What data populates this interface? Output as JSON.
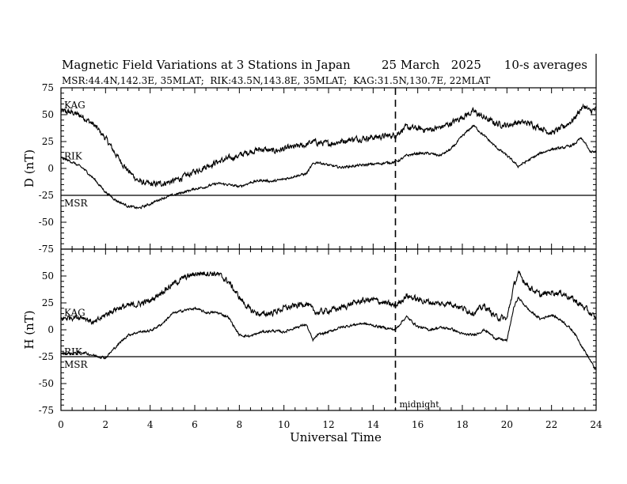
{
  "chart_data": {
    "type": "line",
    "title": "Magnetic Field Variations at 3 Stations in Japan",
    "date": "25 March   2025",
    "averaging": "10-s averages",
    "subtitle": "MSR:44.4N,142.3E, 35MLAT;  RIK:43.5N,143.8E, 35MLAT;  KAG:31.5N,130.7E, 22MLAT",
    "xlabel": "Universal Time",
    "xlim": [
      0,
      24
    ],
    "x_ticks": [
      "0",
      "2",
      "4",
      "6",
      "8",
      "10",
      "12",
      "14",
      "16",
      "18",
      "20",
      "22",
      "24"
    ],
    "midnight_marker": {
      "x": 15,
      "label": "midnight"
    },
    "panels": [
      {
        "ylabel": "D (nT)",
        "ylim": [
          -75,
          75
        ],
        "y_ticks": [
          "75",
          "50",
          "25",
          "0",
          "-25",
          "-50",
          "-75"
        ],
        "series": [
          {
            "name": "KAG",
            "x": [
              0,
              0.5,
              1,
              1.5,
              2,
              2.5,
              3,
              3.5,
              4,
              4.5,
              5,
              5.5,
              6,
              6.5,
              7,
              7.5,
              8,
              8.5,
              9,
              9.5,
              10,
              10.5,
              11,
              11.3,
              11.5,
              12,
              12.5,
              13,
              13.5,
              14,
              14.5,
              15,
              15.3,
              15.5,
              16,
              16.5,
              17,
              17.5,
              18,
              18.5,
              19,
              19.5,
              20,
              20.5,
              21,
              21.5,
              22,
              22.5,
              23,
              23.3,
              23.5,
              23.7,
              24
            ],
            "y": [
              53,
              52,
              48,
              40,
              28,
              12,
              -2,
              -12,
              -15,
              -14,
              -12,
              -8,
              -3,
              2,
              6,
              9,
              12,
              16,
              18,
              16,
              18,
              20,
              22,
              25,
              24,
              23,
              25,
              27,
              28,
              29,
              30,
              31,
              36,
              38,
              37,
              36,
              38,
              42,
              48,
              53,
              47,
              42,
              40,
              43,
              42,
              38,
              33,
              38,
              46,
              55,
              58,
              53,
              55
            ]
          },
          {
            "name": "RIK",
            "x": [
              0,
              0.5,
              1,
              1.5,
              2,
              2.5,
              3,
              3.5,
              4,
              4.5,
              5,
              5.5,
              6,
              6.5,
              7,
              7.5,
              8,
              8.5,
              9,
              9.5,
              10,
              10.5,
              11,
              11.3,
              11.5,
              12,
              12.5,
              13,
              13.5,
              14,
              14.5,
              15,
              15.3,
              15.5,
              16,
              16.5,
              17,
              17.5,
              18,
              18.5,
              19,
              19.5,
              20,
              20.5,
              21,
              21.5,
              22,
              22.5,
              23,
              23.3,
              23.5,
              23.7,
              24
            ],
            "y": [
              10,
              6,
              0,
              -10,
              -22,
              -30,
              -35,
              -37,
              -33,
              -28,
              -25,
              -22,
              -19,
              -17,
              -14,
              -15,
              -17,
              -13,
              -11,
              -12,
              -10,
              -7,
              -5,
              4,
              6,
              3,
              1,
              2,
              3,
              4,
              5,
              6,
              9,
              12,
              14,
              14,
              12,
              18,
              30,
              40,
              30,
              20,
              12,
              2,
              8,
              14,
              18,
              19,
              22,
              28,
              24,
              16,
              15
            ]
          },
          {
            "name": "MSR",
            "x": [
              0,
              24
            ],
            "y": [
              -25,
              -25
            ]
          }
        ]
      },
      {
        "ylabel": "H (nT)",
        "ylim": [
          -75,
          75
        ],
        "y_ticks": [
          "75",
          "50",
          "25",
          "0",
          "-25",
          "-50",
          "-75"
        ],
        "series": [
          {
            "name": "KAG",
            "x": [
              0,
              0.5,
              1,
              1.5,
              2,
              2.5,
              3,
              3.5,
              4,
              4.5,
              5,
              5.5,
              6,
              6.5,
              7,
              7.5,
              8,
              8.5,
              9,
              9.5,
              10,
              10.5,
              11,
              11.3,
              11.5,
              12,
              12.5,
              13,
              13.5,
              14,
              14.5,
              15,
              15.3,
              15.5,
              16,
              16.5,
              17,
              17.5,
              18,
              18.5,
              19,
              19.5,
              20,
              20.3,
              20.5,
              21,
              21.5,
              22,
              22.5,
              23,
              23.5,
              24
            ],
            "y": [
              10,
              12,
              12,
              6,
              14,
              20,
              22,
              24,
              27,
              35,
              42,
              48,
              52,
              53,
              52,
              45,
              30,
              18,
              14,
              16,
              20,
              22,
              25,
              18,
              16,
              18,
              20,
              24,
              27,
              28,
              25,
              22,
              28,
              32,
              28,
              26,
              24,
              25,
              20,
              16,
              22,
              12,
              10,
              40,
              52,
              40,
              32,
              35,
              34,
              28,
              20,
              10
            ]
          },
          {
            "name": "RIK",
            "x": [
              0,
              0.5,
              1,
              1.5,
              2,
              2.5,
              3,
              3.5,
              4,
              4.5,
              5,
              5.5,
              6,
              6.5,
              7,
              7.5,
              8,
              8.5,
              9,
              9.5,
              10,
              10.5,
              11,
              11.3,
              11.5,
              12,
              12.5,
              13,
              13.5,
              14,
              14.5,
              15,
              15.3,
              15.5,
              16,
              16.5,
              17,
              17.5,
              18,
              18.5,
              19,
              19.5,
              20,
              20.3,
              20.5,
              21,
              21.5,
              22,
              22.5,
              23,
              23.5,
              24
            ],
            "y": [
              -22,
              -22,
              -21,
              -24,
              -26,
              -15,
              -5,
              -2,
              -1,
              5,
              15,
              18,
              20,
              16,
              16,
              12,
              -5,
              -6,
              -2,
              -1,
              -2,
              2,
              5,
              -10,
              -5,
              -2,
              2,
              4,
              6,
              4,
              2,
              0,
              8,
              12,
              3,
              0,
              2,
              1,
              -4,
              -5,
              0,
              -8,
              -10,
              20,
              30,
              18,
              10,
              14,
              8,
              -2,
              -20,
              -38
            ]
          },
          {
            "name": "MSR",
            "x": [
              0,
              24
            ],
            "y": [
              -25,
              -25
            ]
          }
        ]
      }
    ]
  }
}
